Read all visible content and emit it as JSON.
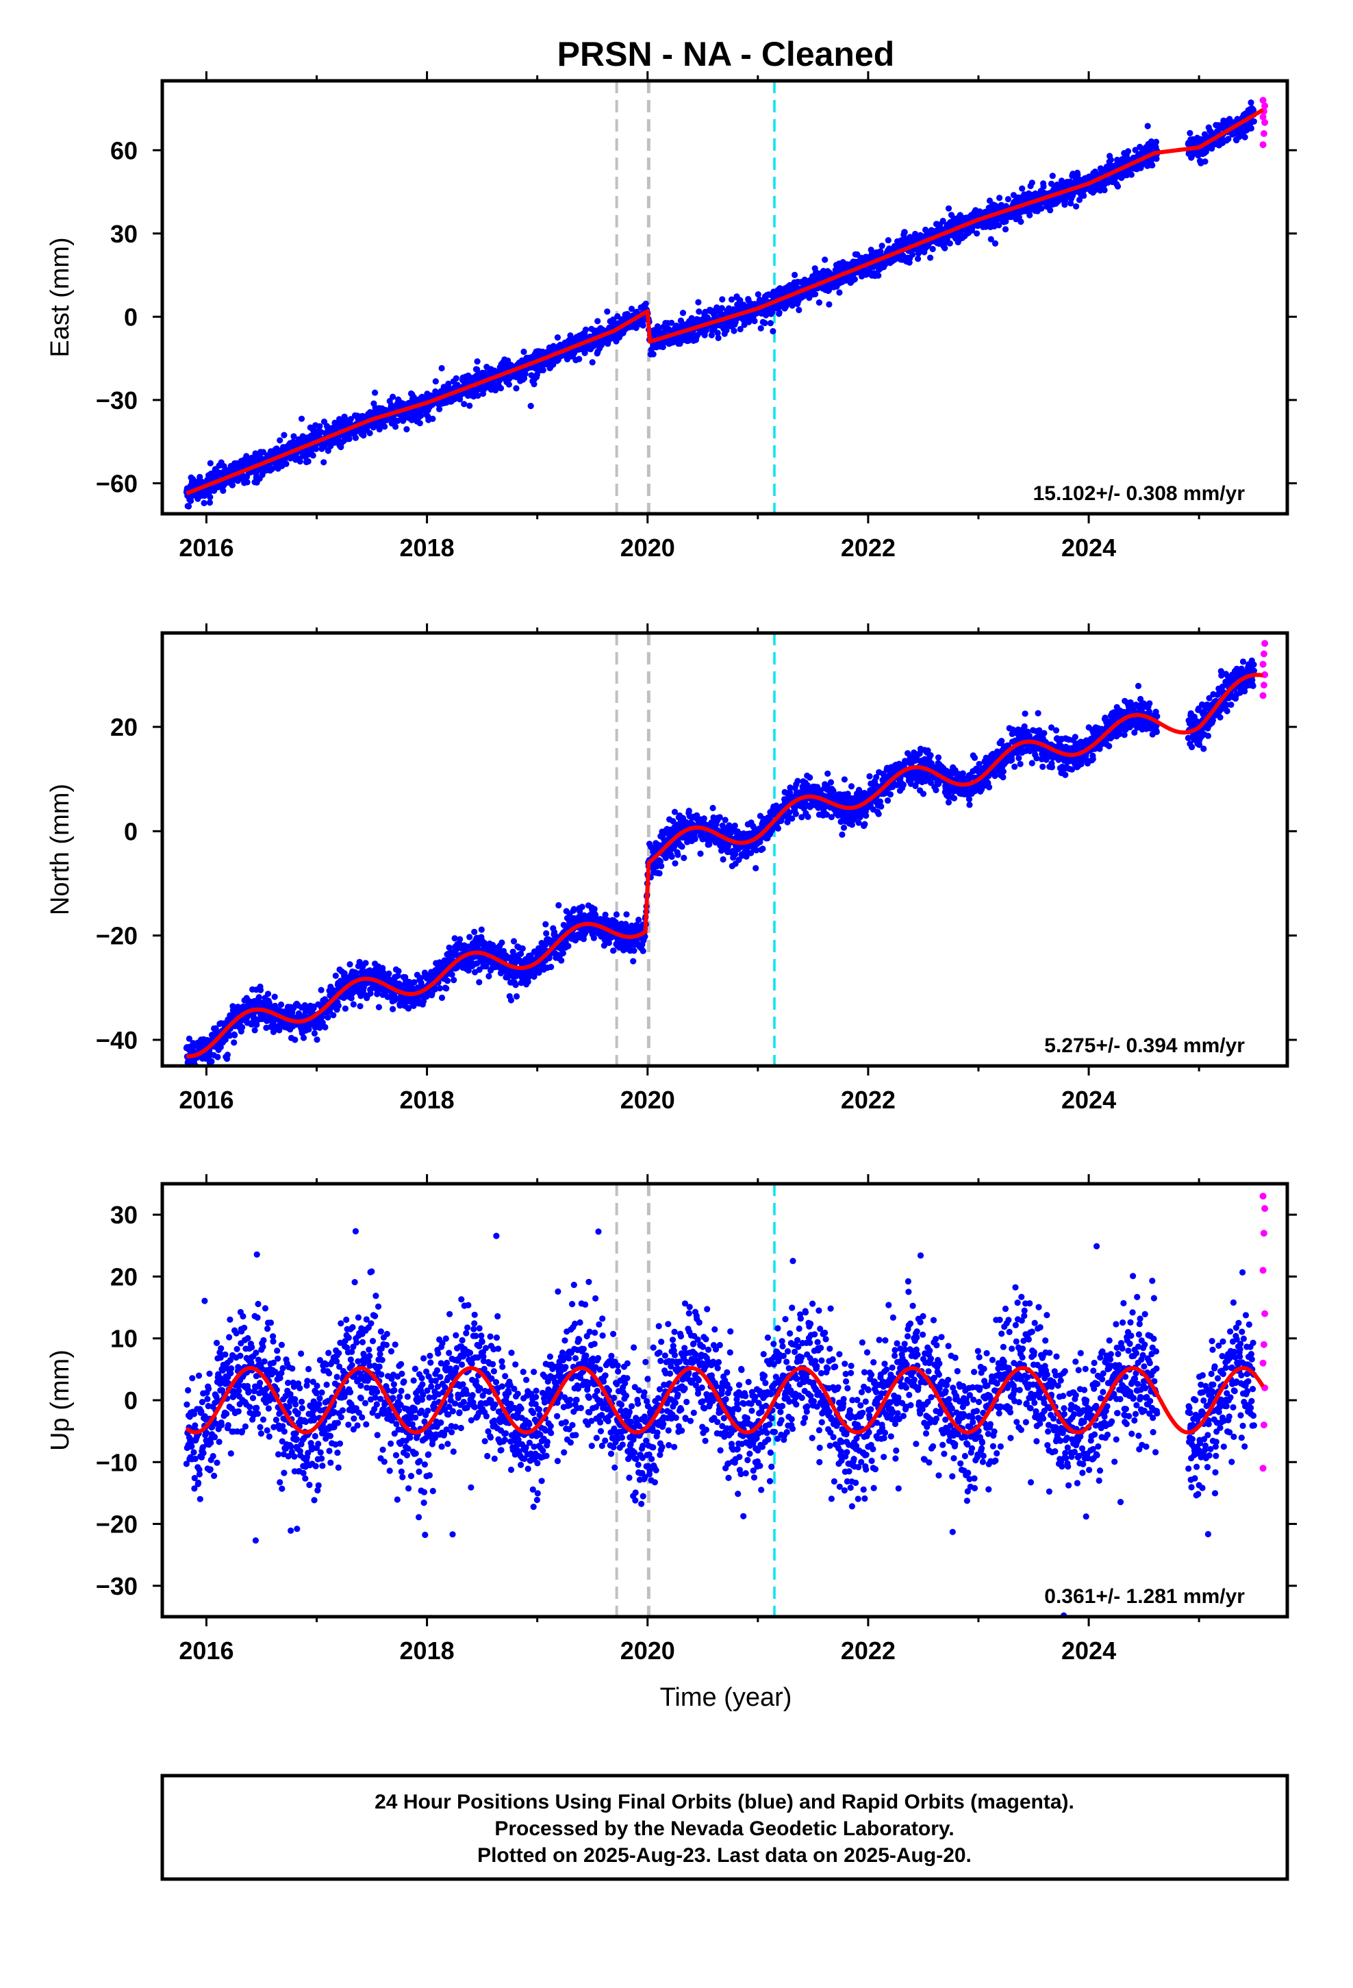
{
  "title": "PRSN  - NA - Cleaned",
  "xlabel": "Time (year)",
  "footer": {
    "line1": "24 Hour Positions Using Final Orbits (blue) and Rapid Orbits (magenta).",
    "line2": "Processed by the Nevada Geodetic Laboratory.",
    "line3": "Plotted on 2025-Aug-23. Last data on 2025-Aug-20."
  },
  "colors": {
    "final": "#0000ff",
    "rapid": "#ff00ff",
    "model": "#ff0000",
    "gray_line": "#c0c0c0",
    "cyan_line": "#00e5ee"
  },
  "chart_data": [
    {
      "type": "scatter",
      "panel": "east",
      "ylabel": "East (mm)",
      "xlim": [
        2015.6,
        2025.8
      ],
      "ylim": [
        -71,
        85
      ],
      "xticks": [
        2016,
        2018,
        2020,
        2022,
        2024
      ],
      "xtick_labels": [
        "2016",
        "2018",
        "2020",
        "2022",
        "2024"
      ],
      "yticks": [
        -60,
        -30,
        0,
        30,
        60
      ],
      "ytick_labels": [
        "−60",
        "−30",
        "0",
        "30",
        "60"
      ],
      "rate": "15.102+/- 0.308 mm/yr",
      "vlines": [
        {
          "x": 2019.72,
          "color": "gray"
        },
        {
          "x": 2020.01,
          "color": "gray"
        },
        {
          "x": 2021.15,
          "color": "cyan"
        }
      ],
      "model_knots": [
        [
          2015.8,
          -64
        ],
        [
          2016.5,
          -53
        ],
        [
          2017.5,
          -37
        ],
        [
          2018.0,
          -31
        ],
        [
          2019.0,
          -16
        ],
        [
          2019.7,
          -5
        ],
        [
          2020.0,
          2
        ],
        [
          2020.02,
          -9
        ],
        [
          2021.0,
          3
        ],
        [
          2022.0,
          19
        ],
        [
          2023.0,
          35
        ],
        [
          2024.0,
          48
        ],
        [
          2024.6,
          59
        ],
        [
          2025.0,
          61
        ],
        [
          2025.6,
          75
        ]
      ],
      "model_steps": [
        2020.01
      ],
      "scatter_sigma": 2.2,
      "rapid_values": [
        62,
        66,
        70,
        72,
        74,
        76,
        78
      ],
      "final_range": [
        2015.82,
        2025.5
      ],
      "gap": [
        2024.62,
        2024.9
      ]
    },
    {
      "type": "scatter",
      "panel": "north",
      "ylabel": "North (mm)",
      "xlim": [
        2015.6,
        2025.8
      ],
      "ylim": [
        -45,
        38
      ],
      "xticks": [
        2016,
        2018,
        2020,
        2022,
        2024
      ],
      "xtick_labels": [
        "2016",
        "2018",
        "2020",
        "2022",
        "2024"
      ],
      "yticks": [
        -40,
        -20,
        0,
        20
      ],
      "ytick_labels": [
        "−40",
        "−20",
        "0",
        "20"
      ],
      "rate": "5.275+/- 0.394 mm/yr",
      "vlines": [
        {
          "x": 2019.72,
          "color": "gray"
        },
        {
          "x": 2020.01,
          "color": "gray"
        },
        {
          "x": 2021.15,
          "color": "cyan"
        }
      ],
      "model_knots": [
        [
          2015.8,
          -41
        ],
        [
          2017.0,
          -33
        ],
        [
          2018.0,
          -28
        ],
        [
          2019.0,
          -23
        ],
        [
          2019.98,
          -17
        ],
        [
          2020.01,
          -4
        ],
        [
          2021.0,
          1
        ],
        [
          2022.0,
          8
        ],
        [
          2023.0,
          12
        ],
        [
          2024.0,
          18
        ],
        [
          2025.0,
          22
        ],
        [
          2025.6,
          29
        ]
      ],
      "model_steps": [
        2020.0
      ],
      "seasonal_amp": 2.6,
      "scatter_sigma": 1.6,
      "rapid_values": [
        26,
        28,
        30,
        32,
        34,
        36
      ],
      "final_range": [
        2015.82,
        2025.5
      ],
      "gap": [
        2024.62,
        2024.9
      ]
    },
    {
      "type": "scatter",
      "panel": "up",
      "ylabel": "Up (mm)",
      "xlim": [
        2015.6,
        2025.8
      ],
      "ylim": [
        -35,
        35
      ],
      "xticks": [
        2016,
        2018,
        2020,
        2022,
        2024
      ],
      "xtick_labels": [
        "2016",
        "2018",
        "2020",
        "2022",
        "2024"
      ],
      "yticks": [
        -30,
        -20,
        -10,
        0,
        10,
        20,
        30
      ],
      "ytick_labels": [
        "−30",
        "−20",
        "−10",
        "0",
        "10",
        "20",
        "30"
      ],
      "rate": "0.361+/- 1.281 mm/yr",
      "vlines": [
        {
          "x": 2019.72,
          "color": "gray"
        },
        {
          "x": 2020.01,
          "color": "gray"
        },
        {
          "x": 2021.15,
          "color": "cyan"
        }
      ],
      "model_knots": [
        [
          2015.8,
          0
        ],
        [
          2025.6,
          0
        ]
      ],
      "seasonal_amp": 5.2,
      "scatter_sigma": 5.0,
      "rapid_values": [
        -11,
        -4,
        2,
        6,
        9,
        14,
        21,
        27,
        31,
        33
      ],
      "final_range": [
        2015.82,
        2025.5
      ],
      "gap": [
        2024.62,
        2024.9
      ]
    }
  ]
}
